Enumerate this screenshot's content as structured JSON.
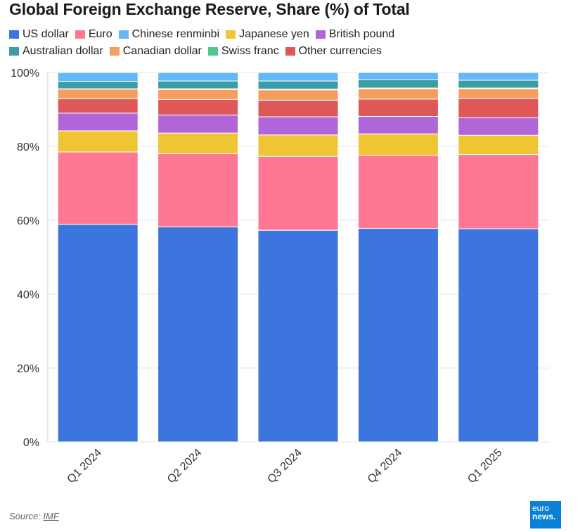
{
  "title": "Global Foreign Exchange Reserve, Share (%) of Total",
  "source_prefix": "Source: ",
  "source_name": "IMF",
  "logo": {
    "line1": "euro",
    "line2": "news."
  },
  "colors": {
    "US dollar": "#3b75dd",
    "Euro": "#ff7893",
    "Chinese renminbi": "#63b8f7",
    "Japanese yen": "#f0c534",
    "British pound": "#b066d8",
    "Australian dollar": "#3b9ea6",
    "Canadian dollar": "#f59e5e",
    "Swiss franc": "#52c890",
    "Other currencies": "#de5858"
  },
  "chart_data": {
    "type": "bar",
    "stacked": true,
    "title": "Global Foreign Exchange Reserve, Share (%) of Total",
    "categories": [
      "Q1 2024",
      "Q2 2024",
      "Q3 2024",
      "Q4 2024",
      "Q1 2025"
    ],
    "ylim": [
      0,
      100
    ],
    "yticks": [
      "0%",
      "20%",
      "40%",
      "60%",
      "80%",
      "100%"
    ],
    "legend_position": "top-left",
    "grid": true,
    "series": [
      {
        "name": "US dollar",
        "values": [
          58.9,
          58.2,
          57.3,
          57.8,
          57.7
        ]
      },
      {
        "name": "Euro",
        "values": [
          19.6,
          19.8,
          20.0,
          19.8,
          20.1
        ]
      },
      {
        "name": "Japanese yen",
        "values": [
          5.7,
          5.6,
          5.8,
          5.8,
          5.2
        ]
      },
      {
        "name": "British pound",
        "values": [
          4.8,
          4.9,
          4.9,
          4.7,
          4.8
        ]
      },
      {
        "name": "Other currencies",
        "values": [
          3.9,
          4.2,
          4.5,
          4.7,
          5.2
        ]
      },
      {
        "name": "Canadian dollar",
        "values": [
          2.6,
          2.7,
          2.8,
          2.8,
          2.6
        ]
      },
      {
        "name": "Swiss franc",
        "values": [
          0.1,
          0.2,
          0.2,
          0.2,
          0.2
        ]
      },
      {
        "name": "Australian dollar",
        "values": [
          2.0,
          2.1,
          2.2,
          2.2,
          2.1
        ]
      },
      {
        "name": "Chinese renminbi",
        "values": [
          2.4,
          2.3,
          2.3,
          2.0,
          2.1
        ]
      }
    ],
    "legend_rows": [
      [
        "US dollar",
        "Euro",
        "Chinese renminbi",
        "Japanese yen",
        "British pound"
      ],
      [
        "Australian dollar",
        "Canadian dollar",
        "Swiss franc",
        "Other currencies"
      ]
    ]
  }
}
